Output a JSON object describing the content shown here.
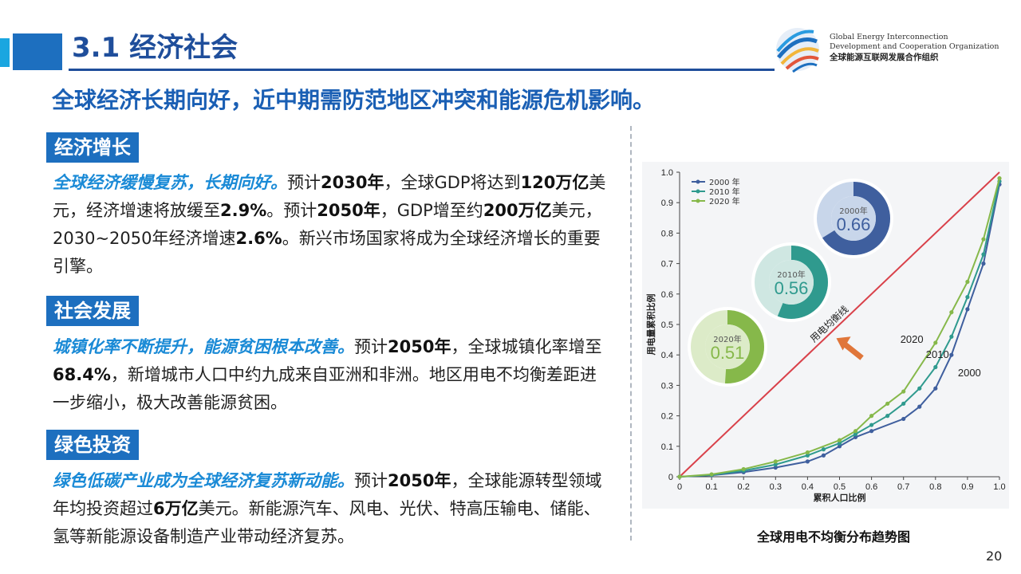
{
  "header": {
    "title": "3.1 经济社会",
    "org_en_line1": "Global Energy Interconnection",
    "org_en_line2": "Development and Cooperation Organization",
    "org_cn": "全球能源互联网发展合作组织"
  },
  "subtitle": "全球经济长期向好，近中期需防范地区冲突和能源危机影响。",
  "sections": [
    {
      "tag": "经济增长",
      "lead": "全球经济缓慢复苏，长期向好。",
      "t1": "预计",
      "b1": "2030年",
      "t2": "，全球GDP将达到",
      "b2": "120万亿",
      "t3": "美元，经济增速将放缓至",
      "b3": "2.9%",
      "t4": "。预计",
      "b4": "2050年",
      "t5": "，GDP增至约",
      "b5": "200万亿",
      "t6": "美元，2030~2050年经济增速",
      "b6": "2.6%",
      "t7": "。新兴市场国家将成为全球经济增长的重要引擎。"
    },
    {
      "tag": "社会发展",
      "lead": "城镇化率不断提升，能源贫困根本改善。",
      "t1": "预计",
      "b1": "2050年",
      "t2": "，全球城镇化率增至",
      "b2": "68.4%",
      "t3": "，新增城市人口中约九成来自亚洲和非洲。地区用电不均衡差距进一步缩小，极大改善能源贫困。"
    },
    {
      "tag": "绿色投资",
      "lead": "绿色低碳产业成为全球经济复苏新动能。",
      "t1": "预计",
      "b1": "2050年",
      "t2": "，全球能源转型领域年均投资超过",
      "b2": "6万亿",
      "t3": "美元。新能源汽车、风电、光伏、特高压输电、储能、氢等新能源设备制造产业带动经济复苏。"
    }
  ],
  "chart_caption": "全球用电不均衡分布趋势图",
  "page_number": "20",
  "chart_data": {
    "type": "line",
    "xlabel": "累积人口比例",
    "ylabel": "用电量累积比例",
    "xlim": [
      0,
      1
    ],
    "ylim": [
      0,
      1
    ],
    "xticks": [
      "0",
      "0.1",
      "0.2",
      "0.3",
      "0.4",
      "0.5",
      "0.6",
      "0.7",
      "0.8",
      "0.9",
      "1.0"
    ],
    "yticks": [
      "0",
      "0.1",
      "0.2",
      "0.3",
      "0.4",
      "0.5",
      "0.6",
      "0.7",
      "0.8",
      "0.9",
      "1.0"
    ],
    "legend": [
      "2000 年",
      "2010 年",
      "2020 年"
    ],
    "equality_line_label": "用电均衡线",
    "series": [
      {
        "name": "2000",
        "color": "#3f5f9e",
        "x": [
          0,
          0.1,
          0.2,
          0.3,
          0.4,
          0.45,
          0.5,
          0.55,
          0.6,
          0.7,
          0.75,
          0.8,
          0.85,
          0.9,
          0.95,
          1.0
        ],
        "y": [
          0,
          0.005,
          0.015,
          0.03,
          0.05,
          0.07,
          0.1,
          0.13,
          0.15,
          0.19,
          0.23,
          0.29,
          0.4,
          0.55,
          0.7,
          0.96
        ]
      },
      {
        "name": "2010",
        "color": "#2f9a8e",
        "x": [
          0,
          0.1,
          0.2,
          0.3,
          0.4,
          0.45,
          0.5,
          0.55,
          0.6,
          0.65,
          0.7,
          0.75,
          0.8,
          0.85,
          0.9,
          0.95,
          1.0
        ],
        "y": [
          0,
          0.006,
          0.02,
          0.04,
          0.07,
          0.09,
          0.11,
          0.14,
          0.17,
          0.2,
          0.24,
          0.29,
          0.36,
          0.46,
          0.59,
          0.73,
          0.97
        ]
      },
      {
        "name": "2020",
        "color": "#86b84a",
        "x": [
          0,
          0.1,
          0.2,
          0.3,
          0.4,
          0.5,
          0.55,
          0.6,
          0.65,
          0.7,
          0.8,
          0.85,
          0.9,
          0.95,
          1.0
        ],
        "y": [
          0,
          0.008,
          0.025,
          0.05,
          0.08,
          0.12,
          0.15,
          0.2,
          0.24,
          0.28,
          0.44,
          0.54,
          0.64,
          0.78,
          0.98
        ]
      }
    ],
    "curve_labels": [
      "2020",
      "2010",
      "2000"
    ],
    "donuts": [
      {
        "year": "2000年",
        "value": "0.66",
        "fraction": 0.66,
        "color": "#3f5f9e",
        "track": "#c8d6ea"
      },
      {
        "year": "2010年",
        "value": "0.56",
        "fraction": 0.56,
        "color": "#2f9a8e",
        "track": "#cfe7e2"
      },
      {
        "year": "2020年",
        "value": "0.51",
        "fraction": 0.51,
        "color": "#86b84a",
        "track": "#dcebc8"
      }
    ]
  }
}
